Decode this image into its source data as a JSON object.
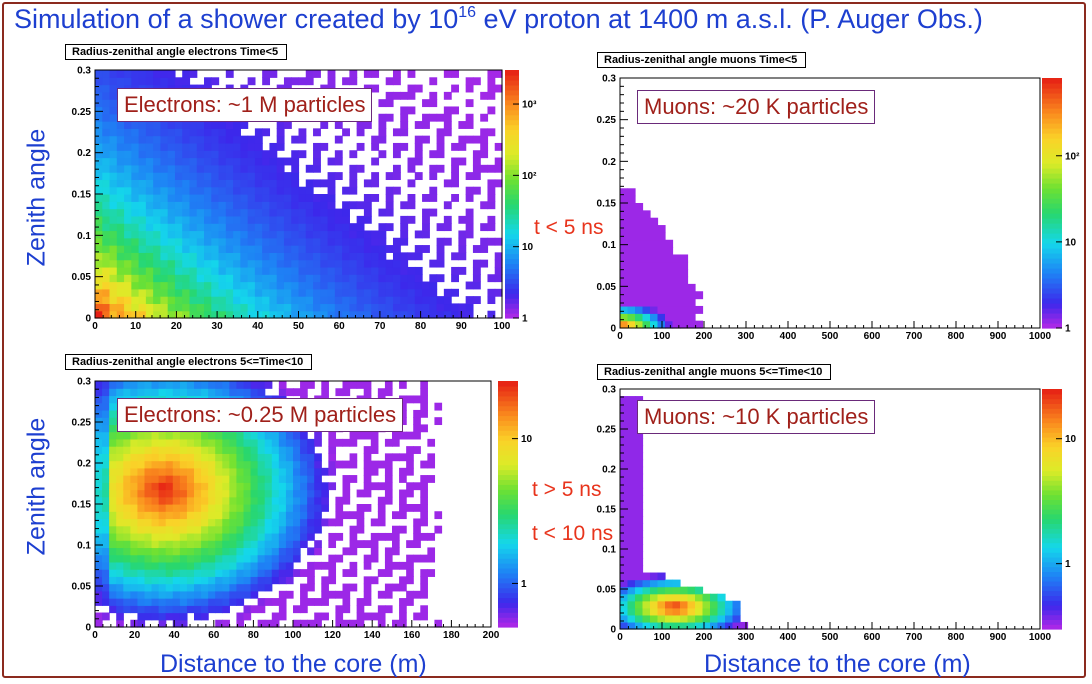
{
  "title": {
    "before": "Simulation of a shower created by 10",
    "sup": "16",
    "after": " eV proton at 1400 m a.s.l. (P. Auger Obs.)"
  },
  "labels": {
    "zenith_top": "Zenith angle",
    "zenith_bottom": "Zenith angle",
    "distance_left": "Distance to the core (m)",
    "distance_right": "Distance to the core (m)",
    "cond_top": "t < 5 ns",
    "cond_mid1": "t > 5 ns",
    "cond_mid2": "t < 10 ns"
  },
  "colors": {
    "title": "#1d3fd0",
    "frame": "#8b2a1e",
    "annotation_text": "#a0201a",
    "condition_text": "#e8341c"
  },
  "chart_data": [
    {
      "type": "heatmap",
      "title": "Radius-zenithal angle electrons Time<5",
      "annotation": "Electrons: ~1 M particles",
      "x_ticks": [
        "0",
        "10",
        "20",
        "30",
        "40",
        "50",
        "60",
        "70",
        "80",
        "90",
        "100"
      ],
      "y_ticks": [
        "0",
        "0.05",
        "0.1",
        "0.15",
        "0.2",
        "0.25",
        "0.3"
      ],
      "xlim": [
        0,
        100
      ],
      "ylim": [
        0,
        0.3
      ],
      "z_scale": "log",
      "zlim": [
        1,
        3000
      ],
      "z_ticks": [
        {
          "value": 1,
          "label": "1"
        },
        {
          "value": 10,
          "label": "10"
        },
        {
          "value": 100,
          "label": "10²"
        },
        {
          "value": 1000,
          "label": "10³"
        }
      ],
      "peak": {
        "x": 5,
        "y": 0.01,
        "count": 3000
      },
      "extent": {
        "x_max": 100,
        "y_max": 0.3
      }
    },
    {
      "type": "heatmap",
      "title": "Radius-zenithal angle muons Time<5",
      "annotation": "Muons: ~20 K particles",
      "x_ticks": [
        "0",
        "100",
        "200",
        "300",
        "400",
        "500",
        "600",
        "700",
        "800",
        "900",
        "1000"
      ],
      "y_ticks": [
        "0",
        "0.05",
        "0.1",
        "0.15",
        "0.2",
        "0.25",
        "0.3"
      ],
      "xlim": [
        0,
        1000
      ],
      "ylim": [
        0,
        0.3
      ],
      "z_scale": "log",
      "zlim": [
        1,
        800
      ],
      "z_ticks": [
        {
          "value": 1,
          "label": "1"
        },
        {
          "value": 10,
          "label": "10"
        },
        {
          "value": 100,
          "label": "10²"
        }
      ],
      "peak": {
        "x": 40,
        "y": 0.01,
        "count": 800
      },
      "extent": {
        "x_max": 180,
        "y_max": 0.17
      }
    },
    {
      "type": "heatmap",
      "title": "Radius-zenithal angle electrons 5<=Time<10",
      "annotation": "Electrons: ~0.25 M particles",
      "x_ticks": [
        "0",
        "20",
        "40",
        "60",
        "80",
        "100",
        "120",
        "140",
        "160",
        "180",
        "200"
      ],
      "y_ticks": [
        "0",
        "0.05",
        "0.1",
        "0.15",
        "0.2",
        "0.25",
        "0.3"
      ],
      "xlim": [
        0,
        200
      ],
      "ylim": [
        0,
        0.3
      ],
      "z_scale": "log",
      "zlim": [
        0.5,
        25
      ],
      "z_ticks": [
        {
          "value": 1,
          "label": "1"
        },
        {
          "value": 10,
          "label": "10"
        }
      ],
      "peak": {
        "x": 35,
        "y": 0.17,
        "count": 25
      },
      "extent": {
        "x_max": 175,
        "y_max": 0.3
      }
    },
    {
      "type": "heatmap",
      "title": "Radius-zenithal angle muons 5<=Time<10",
      "annotation": "Muons: ~10 K particles",
      "x_ticks": [
        "0",
        "100",
        "200",
        "300",
        "400",
        "500",
        "600",
        "700",
        "800",
        "900",
        "1000"
      ],
      "y_ticks": [
        "0",
        "0.05",
        "0.1",
        "0.15",
        "0.2",
        "0.25",
        "0.3"
      ],
      "xlim": [
        0,
        1000
      ],
      "ylim": [
        0,
        0.3
      ],
      "z_scale": "log",
      "zlim": [
        0.3,
        25
      ],
      "z_ticks": [
        {
          "value": 1,
          "label": "1"
        },
        {
          "value": 10,
          "label": "10"
        }
      ],
      "peak": {
        "x": 130,
        "y": 0.028,
        "count": 25
      },
      "extent": {
        "x_max": 280,
        "y_max": 0.29
      }
    }
  ]
}
